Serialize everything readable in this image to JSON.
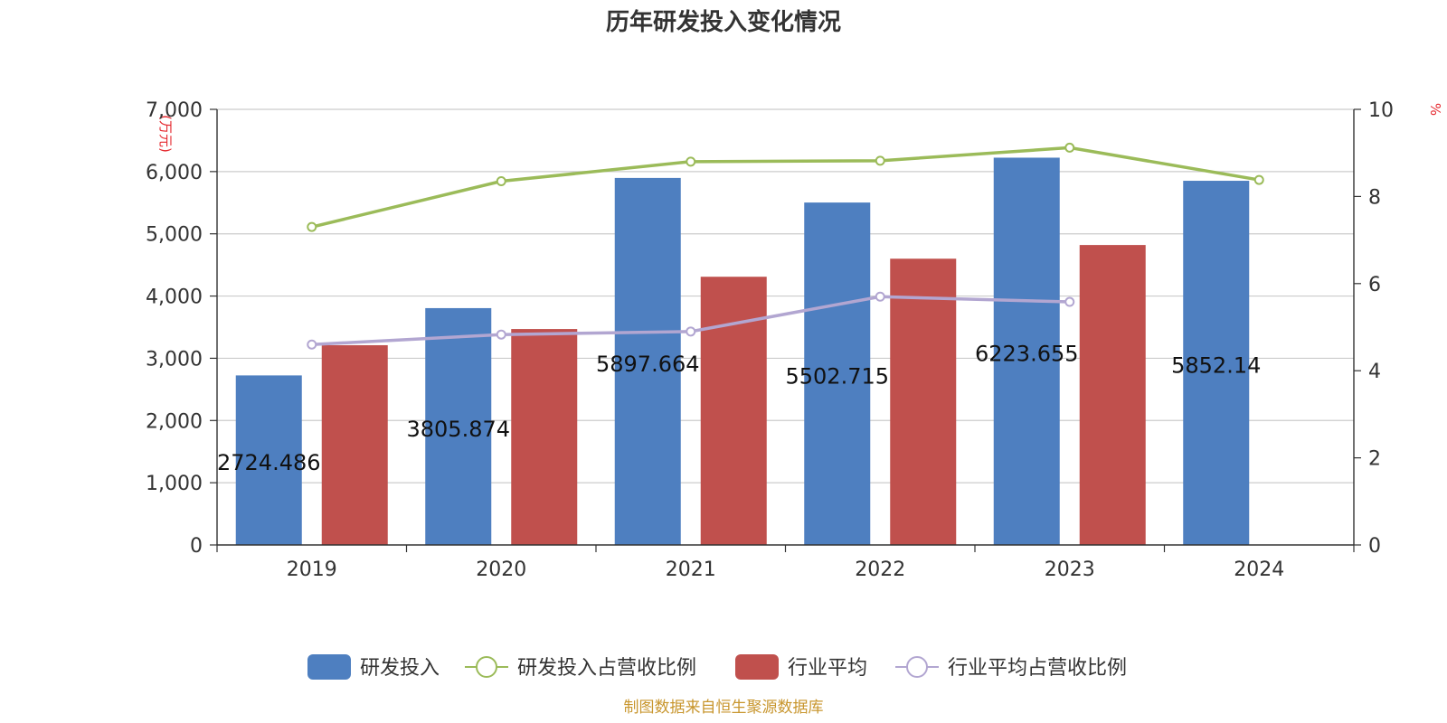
{
  "chart_data": {
    "type": "bar",
    "title": "历年研发投入变化情况",
    "categories": [
      "2019",
      "2020",
      "2021",
      "2022",
      "2023",
      "2024"
    ],
    "left_axis": {
      "unit": "(万元)",
      "ylim": [
        0,
        7000
      ],
      "ticks": [
        0,
        1000,
        2000,
        3000,
        4000,
        5000,
        6000,
        7000
      ]
    },
    "right_axis": {
      "unit": "%",
      "ylim": [
        0,
        10
      ],
      "ticks": [
        0,
        2,
        4,
        6,
        8,
        10
      ]
    },
    "grid": true,
    "legend_position": "bottom",
    "series": [
      {
        "name": "研发投入",
        "kind": "bar",
        "axis": "left",
        "color": "#4e7fc0",
        "values": [
          2724.486,
          3805.874,
          5897.664,
          5502.715,
          6223.655,
          5852.14
        ],
        "data_labels": [
          "2724.486",
          "3805.874",
          "5897.664",
          "5502.715",
          "6223.655",
          "5852.14"
        ]
      },
      {
        "name": "研发投入占营收比例",
        "kind": "line",
        "axis": "right",
        "color": "#9bbb59",
        "values": [
          7.3,
          8.35,
          8.8,
          8.82,
          9.12,
          8.38
        ]
      },
      {
        "name": "行业平均",
        "kind": "bar",
        "axis": "left",
        "color": "#c0504d",
        "values": [
          3210,
          3470,
          4310,
          4600,
          4820,
          null
        ]
      },
      {
        "name": "行业平均占营收比例",
        "kind": "line",
        "axis": "right",
        "color": "#b2a6d1",
        "values": [
          4.6,
          4.83,
          4.9,
          5.7,
          5.58,
          null
        ]
      }
    ]
  },
  "footer": {
    "source": "制图数据来自恒生聚源数据库",
    "source_color": "#c8962e"
  }
}
